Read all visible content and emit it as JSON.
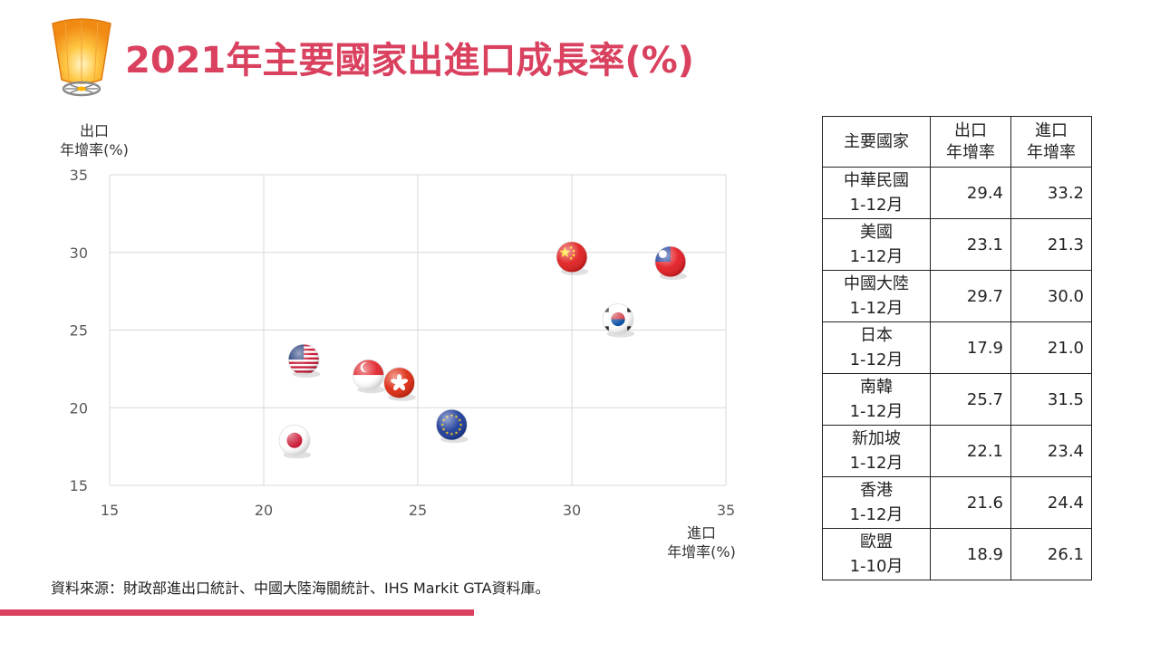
{
  "header": {
    "title": "2021年主要國家出進口成長率(%)"
  },
  "axes": {
    "y_unit_line1": "出口",
    "y_unit_line2": "年增率(%)",
    "x_unit_line1": "進口",
    "x_unit_line2": "年增率(%)"
  },
  "chart_data": {
    "type": "scatter",
    "xlabel": "進口 年增率(%)",
    "ylabel": "出口 年增率(%)",
    "xlim": [
      15,
      35
    ],
    "ylim": [
      15,
      35
    ],
    "x_ticks": [
      "15",
      "20",
      "25",
      "30",
      "35"
    ],
    "y_ticks": [
      "15",
      "20",
      "25",
      "30",
      "35"
    ],
    "grid": true,
    "points": [
      {
        "x": 33.2,
        "y": 29.4,
        "marker": "flag-roc-icon"
      },
      {
        "x": 21.3,
        "y": 23.1,
        "marker": "flag-usa-icon"
      },
      {
        "x": 30.0,
        "y": 29.7,
        "marker": "flag-china-icon"
      },
      {
        "x": 21.0,
        "y": 17.9,
        "marker": "flag-japan-icon"
      },
      {
        "x": 31.5,
        "y": 25.7,
        "marker": "flag-korea-icon"
      },
      {
        "x": 23.4,
        "y": 22.1,
        "marker": "flag-singapore-icon"
      },
      {
        "x": 24.4,
        "y": 21.6,
        "marker": "flag-hongkong-icon"
      },
      {
        "x": 26.1,
        "y": 18.9,
        "marker": "flag-eu-icon"
      }
    ],
    "colors": {
      "grid": "#d9d9d9",
      "tick_text": "#595959",
      "accent": "#d9415f"
    }
  },
  "table": {
    "headers": {
      "country": "主要國家",
      "export_line1": "出口",
      "export_line2": "年增率",
      "import_line1": "進口",
      "import_line2": "年增率"
    },
    "rows": [
      {
        "name": "中華民國",
        "period": "1-12月",
        "export": "29.4",
        "import": "33.2"
      },
      {
        "name": "美國",
        "period": "1-12月",
        "export": "23.1",
        "import": "21.3"
      },
      {
        "name": "中國大陸",
        "period": "1-12月",
        "export": "29.7",
        "import": "30.0"
      },
      {
        "name": "日本",
        "period": "1-12月",
        "export": "17.9",
        "import": "21.0"
      },
      {
        "name": "南韓",
        "period": "1-12月",
        "export": "25.7",
        "import": "31.5"
      },
      {
        "name": "新加坡",
        "period": "1-12月",
        "export": "22.1",
        "import": "23.4"
      },
      {
        "name": "香港",
        "period": "1-12月",
        "export": "21.6",
        "import": "24.4"
      },
      {
        "name": "歐盟",
        "period": "1-10月",
        "export": "18.9",
        "import": "26.1"
      }
    ]
  },
  "footer": {
    "source": "資料來源：財政部進出口統計、中國大陸海關統計、IHS Markit GTA資料庫。"
  }
}
